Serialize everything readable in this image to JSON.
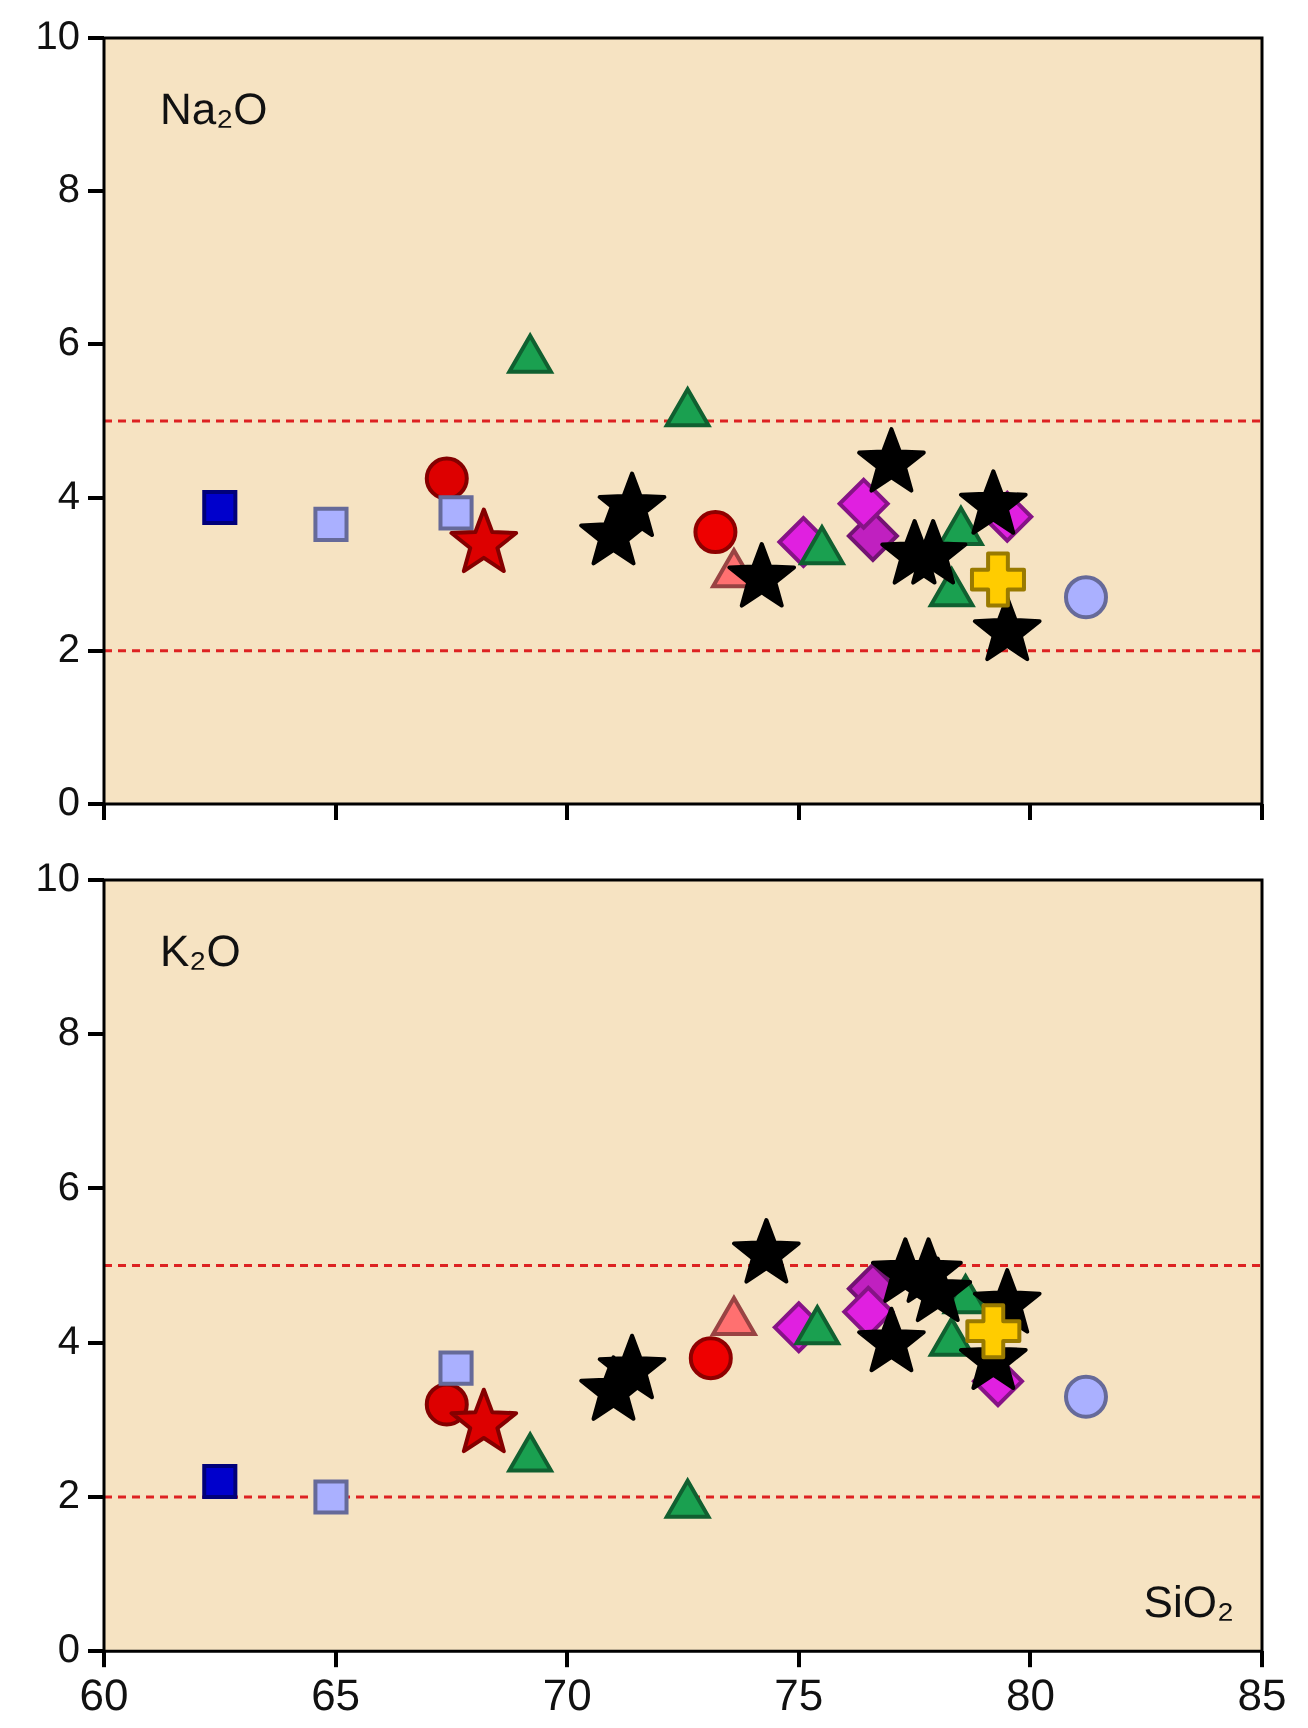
{
  "chart_data": [
    {
      "type": "scatter",
      "annotations": [
        "Na₂O"
      ],
      "xlim": [
        60,
        85
      ],
      "xticks": [
        60,
        65,
        70,
        75,
        80,
        85
      ],
      "ylim": [
        0,
        10
      ],
      "yticks": [
        0,
        2,
        4,
        6,
        8,
        10
      ],
      "tick_labels": "y",
      "grid": false,
      "legend": false,
      "ref_lines": [
        {
          "axis": "y",
          "value": 5,
          "color": "#dd2222",
          "line_style": "dashed"
        },
        {
          "axis": "y",
          "value": 2,
          "color": "#dd2222",
          "line_style": "dashed"
        }
      ],
      "series": [
        {
          "marker": "square",
          "color": "#0000cc",
          "x": [
            62.5
          ],
          "values": [
            3.87
          ]
        },
        {
          "marker": "square",
          "color": "#aab0ff",
          "x": [
            64.9,
            67.6
          ],
          "values": [
            3.65,
            3.8
          ]
        },
        {
          "marker": "circle",
          "color": "#dd0000",
          "x": [
            67.4
          ],
          "values": [
            4.25
          ]
        },
        {
          "marker": "star",
          "color": "#dd0000",
          "x": [
            68.2
          ],
          "values": [
            3.4
          ]
        },
        {
          "marker": "star",
          "color": "#000000",
          "x": [
            71.0,
            71.4,
            74.2,
            77.0,
            77.5,
            77.9,
            79.2,
            79.5
          ],
          "values": [
            3.5,
            3.87,
            2.95,
            4.45,
            3.25,
            3.25,
            3.9,
            2.25
          ]
        },
        {
          "marker": "triangle",
          "color": "#1aa050",
          "x": [
            69.2,
            72.6,
            75.5,
            78.3,
            78.5
          ],
          "values": [
            5.8,
            5.1,
            3.3,
            2.75,
            3.55
          ]
        },
        {
          "marker": "circle",
          "color": "#ee0000",
          "x": [
            73.2
          ],
          "values": [
            3.55
          ]
        },
        {
          "marker": "triangle",
          "color": "#ff7070",
          "x": [
            73.6
          ],
          "values": [
            3.0
          ]
        },
        {
          "marker": "diamond",
          "color": "#e020e0",
          "x": [
            75.1,
            76.4,
            79.5
          ],
          "values": [
            3.42,
            3.92,
            3.75
          ]
        },
        {
          "marker": "diamond",
          "color": "#c020c0",
          "x": [
            76.6
          ],
          "values": [
            3.5
          ]
        },
        {
          "marker": "cross",
          "color": "#ffcc00",
          "x": [
            79.3
          ],
          "values": [
            2.93
          ]
        },
        {
          "marker": "circle",
          "color": "#aab0ff",
          "x": [
            81.2
          ],
          "values": [
            2.7
          ]
        }
      ]
    },
    {
      "type": "scatter",
      "annotations": [
        "K₂O",
        "SiO₂"
      ],
      "xlim": [
        60,
        85
      ],
      "xticks": [
        60,
        65,
        70,
        75,
        80,
        85
      ],
      "ylim": [
        0,
        10
      ],
      "yticks": [
        0,
        2,
        4,
        6,
        8,
        10
      ],
      "grid": false,
      "legend": false,
      "ref_lines": [
        {
          "axis": "y",
          "value": 5,
          "color": "#dd2222",
          "line_style": "dashed"
        },
        {
          "axis": "y",
          "value": 2,
          "color": "#dd2222",
          "line_style": "dashed"
        }
      ],
      "series": [
        {
          "marker": "square",
          "color": "#0000cc",
          "x": [
            62.5
          ],
          "values": [
            2.2
          ]
        },
        {
          "marker": "square",
          "color": "#aab0ff",
          "x": [
            64.9,
            67.6
          ],
          "values": [
            2.0,
            3.67
          ]
        },
        {
          "marker": "circle",
          "color": "#dd0000",
          "x": [
            67.4
          ],
          "values": [
            3.2
          ]
        },
        {
          "marker": "star",
          "color": "#dd0000",
          "x": [
            68.2
          ],
          "values": [
            2.95
          ]
        },
        {
          "marker": "star",
          "color": "#000000",
          "x": [
            71.0,
            71.4,
            74.3,
            77.0,
            77.3,
            77.8,
            78.0,
            79.2,
            79.5
          ],
          "values": [
            3.37,
            3.65,
            5.15,
            4.0,
            4.9,
            4.9,
            4.65,
            3.77,
            4.5
          ]
        },
        {
          "marker": "triangle",
          "color": "#1aa050",
          "x": [
            69.2,
            72.6,
            75.4,
            78.3,
            78.6
          ],
          "values": [
            2.5,
            1.9,
            4.15,
            4.0,
            4.55
          ]
        },
        {
          "marker": "circle",
          "color": "#ee0000",
          "x": [
            73.1
          ],
          "values": [
            3.8
          ]
        },
        {
          "marker": "triangle",
          "color": "#ff7070",
          "x": [
            73.6
          ],
          "values": [
            4.27
          ]
        },
        {
          "marker": "diamond",
          "color": "#e020e0",
          "x": [
            75.0,
            76.5,
            79.3
          ],
          "values": [
            4.2,
            4.4,
            3.5
          ]
        },
        {
          "marker": "diamond",
          "color": "#c020c0",
          "x": [
            76.6
          ],
          "values": [
            4.7
          ]
        },
        {
          "marker": "cross",
          "color": "#ffcc00",
          "x": [
            79.2
          ],
          "values": [
            4.15
          ]
        },
        {
          "marker": "circle",
          "color": "#aab0ff",
          "x": [
            81.2
          ],
          "values": [
            3.3
          ]
        }
      ]
    }
  ]
}
